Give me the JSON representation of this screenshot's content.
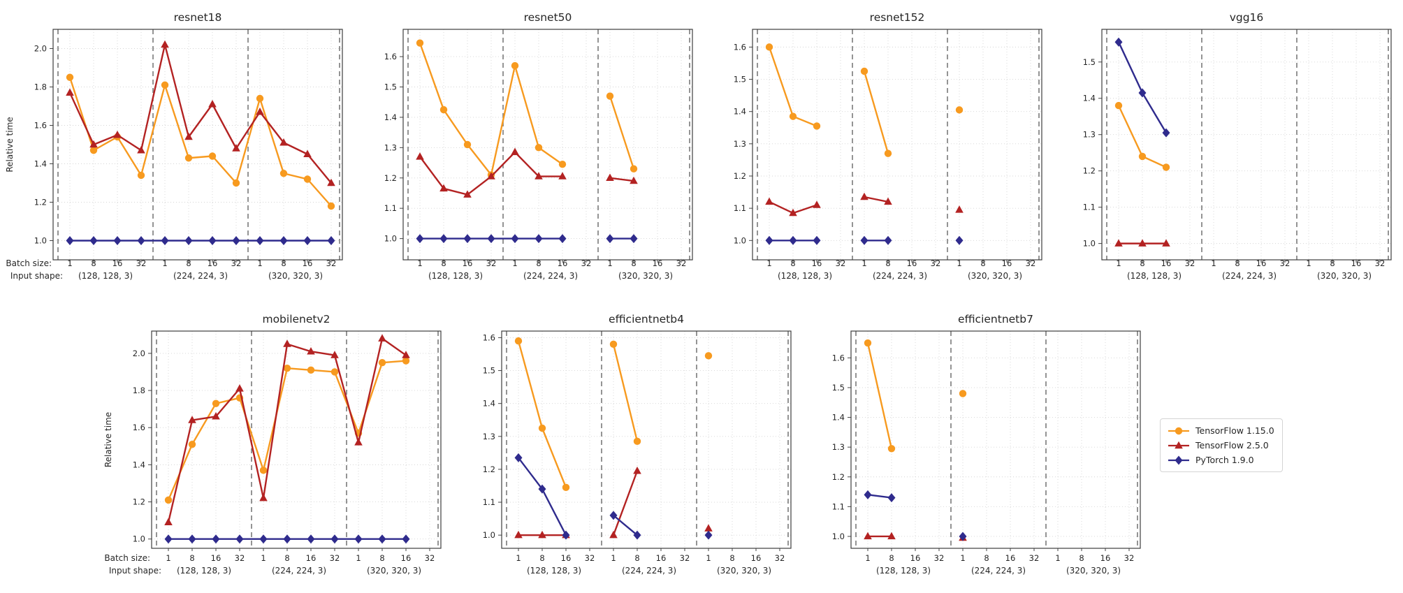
{
  "figure": {
    "ylabel": "Relative time",
    "axis_prefixes": {
      "batch": "Batch size:",
      "shape": "Input shape:"
    },
    "background": "#ffffff"
  },
  "colors": {
    "tensorflow_1_15": "#F79A1F",
    "tensorflow_2_5": "#B32222",
    "pytorch_1_9": "#2F2B8D"
  },
  "legend": {
    "items": [
      {
        "label": "TensorFlow 1.15.0",
        "marker": "circle",
        "color": "tensorflow_1_15"
      },
      {
        "label": "TensorFlow 2.5.0",
        "marker": "triangle",
        "color": "tensorflow_2_5"
      },
      {
        "label": "PyTorch 1.9.0",
        "marker": "diamond",
        "color": "pytorch_1_9"
      }
    ]
  },
  "chart_data": [
    {
      "type": "line",
      "title": "resnet18",
      "show_ylabel": true,
      "show_axis_prefixes": true,
      "ylim": [
        0.9,
        2.1
      ],
      "yticks": [
        "1.0",
        "1.2",
        "1.4",
        "1.6",
        "1.8",
        "2.0"
      ],
      "batches": [
        "1",
        "8",
        "16",
        "32",
        "1",
        "8",
        "16",
        "32",
        "1",
        "8",
        "16",
        "32"
      ],
      "input_shapes": [
        "(128, 128, 3)",
        "(224, 224, 3)",
        "(320, 320, 3)"
      ],
      "series": [
        {
          "name": "TensorFlow 1.15.0",
          "color": "tensorflow_1_15",
          "marker": "circle",
          "values": [
            1.85,
            1.47,
            1.54,
            1.34,
            1.81,
            1.43,
            1.44,
            1.3,
            1.74,
            1.35,
            1.32,
            1.18
          ]
        },
        {
          "name": "TensorFlow 2.5.0",
          "color": "tensorflow_2_5",
          "marker": "triangle",
          "values": [
            1.77,
            1.5,
            1.55,
            1.47,
            2.02,
            1.54,
            1.71,
            1.48,
            1.67,
            1.51,
            1.45,
            1.3
          ]
        },
        {
          "name": "PyTorch 1.9.0",
          "color": "pytorch_1_9",
          "marker": "diamond",
          "values": [
            1.0,
            1.0,
            1.0,
            1.0,
            1.0,
            1.0,
            1.0,
            1.0,
            1.0,
            1.0,
            1.0,
            1.0
          ]
        }
      ]
    },
    {
      "type": "line",
      "title": "resnet50",
      "show_ylabel": false,
      "show_axis_prefixes": false,
      "ylim": [
        0.93,
        1.69
      ],
      "yticks": [
        "1.0",
        "1.1",
        "1.2",
        "1.3",
        "1.4",
        "1.5",
        "1.6"
      ],
      "batches": [
        "1",
        "8",
        "16",
        "32",
        "1",
        "8",
        "16",
        "32",
        "1",
        "8",
        "16",
        "32"
      ],
      "input_shapes": [
        "(128, 128, 3)",
        "(224, 224, 3)",
        "(320, 320, 3)"
      ],
      "series": [
        {
          "name": "TensorFlow 1.15.0",
          "color": "tensorflow_1_15",
          "marker": "circle",
          "values": [
            1.645,
            1.425,
            1.31,
            1.21,
            1.57,
            1.3,
            1.245,
            null,
            1.47,
            1.23,
            null,
            null
          ]
        },
        {
          "name": "TensorFlow 2.5.0",
          "color": "tensorflow_2_5",
          "marker": "triangle",
          "values": [
            1.27,
            1.165,
            1.145,
            1.205,
            1.285,
            1.205,
            1.205,
            null,
            1.2,
            1.19,
            null,
            null
          ]
        },
        {
          "name": "PyTorch 1.9.0",
          "color": "pytorch_1_9",
          "marker": "diamond",
          "values": [
            1.0,
            1.0,
            1.0,
            1.0,
            1.0,
            1.0,
            1.0,
            null,
            1.0,
            1.0,
            null,
            null
          ]
        }
      ]
    },
    {
      "type": "line",
      "title": "resnet152",
      "show_ylabel": false,
      "show_axis_prefixes": false,
      "ylim": [
        0.94,
        1.655
      ],
      "yticks": [
        "1.0",
        "1.1",
        "1.2",
        "1.3",
        "1.4",
        "1.5",
        "1.6"
      ],
      "batches": [
        "1",
        "8",
        "16",
        "32",
        "1",
        "8",
        "16",
        "32",
        "1",
        "8",
        "16",
        "32"
      ],
      "input_shapes": [
        "(128, 128, 3)",
        "(224, 224, 3)",
        "(320, 320, 3)"
      ],
      "series": [
        {
          "name": "TensorFlow 1.15.0",
          "color": "tensorflow_1_15",
          "marker": "circle",
          "values": [
            1.6,
            1.385,
            1.355,
            null,
            1.525,
            1.27,
            null,
            null,
            1.405,
            null,
            null,
            null
          ]
        },
        {
          "name": "TensorFlow 2.5.0",
          "color": "tensorflow_2_5",
          "marker": "triangle",
          "values": [
            1.12,
            1.085,
            1.11,
            null,
            1.135,
            1.12,
            null,
            null,
            1.095,
            null,
            null,
            null
          ]
        },
        {
          "name": "PyTorch 1.9.0",
          "color": "pytorch_1_9",
          "marker": "diamond",
          "values": [
            1.0,
            1.0,
            1.0,
            null,
            1.0,
            1.0,
            null,
            null,
            1.0,
            null,
            null,
            null
          ]
        }
      ]
    },
    {
      "type": "line",
      "title": "vgg16",
      "show_ylabel": false,
      "show_axis_prefixes": false,
      "ylim": [
        0.955,
        1.59
      ],
      "yticks": [
        "1.0",
        "1.1",
        "1.2",
        "1.3",
        "1.4",
        "1.5"
      ],
      "batches": [
        "1",
        "8",
        "16",
        "32",
        "1",
        "8",
        "16",
        "32",
        "1",
        "8",
        "16",
        "32"
      ],
      "input_shapes": [
        "(128, 128, 3)",
        "(224, 224, 3)",
        "(320, 320, 3)"
      ],
      "series": [
        {
          "name": "TensorFlow 1.15.0",
          "color": "tensorflow_1_15",
          "marker": "circle",
          "values": [
            1.38,
            1.24,
            1.21,
            null,
            null,
            null,
            null,
            null,
            null,
            null,
            null,
            null
          ]
        },
        {
          "name": "TensorFlow 2.5.0",
          "color": "tensorflow_2_5",
          "marker": "triangle",
          "values": [
            1.0,
            1.0,
            1.0,
            null,
            null,
            null,
            null,
            null,
            null,
            null,
            null,
            null
          ]
        },
        {
          "name": "PyTorch 1.9.0",
          "color": "pytorch_1_9",
          "marker": "diamond",
          "values": [
            1.555,
            1.415,
            1.305,
            null,
            null,
            null,
            null,
            null,
            null,
            null,
            null,
            null
          ]
        }
      ]
    },
    {
      "type": "line",
      "title": "mobilenetv2",
      "show_ylabel": true,
      "show_axis_prefixes": true,
      "ylim": [
        0.95,
        2.12
      ],
      "yticks": [
        "1.0",
        "1.2",
        "1.4",
        "1.6",
        "1.8",
        "2.0"
      ],
      "batches": [
        "1",
        "8",
        "16",
        "32",
        "1",
        "8",
        "16",
        "32",
        "1",
        "8",
        "16",
        "32"
      ],
      "input_shapes": [
        "(128, 128, 3)",
        "(224, 224, 3)",
        "(320, 320, 3)"
      ],
      "series": [
        {
          "name": "TensorFlow 1.15.0",
          "color": "tensorflow_1_15",
          "marker": "circle",
          "values": [
            1.21,
            1.51,
            1.73,
            1.76,
            1.37,
            1.92,
            1.91,
            1.9,
            1.57,
            1.95,
            1.96,
            null
          ]
        },
        {
          "name": "TensorFlow 2.5.0",
          "color": "tensorflow_2_5",
          "marker": "triangle",
          "values": [
            1.09,
            1.64,
            1.66,
            1.81,
            1.22,
            2.05,
            2.01,
            1.99,
            1.52,
            2.08,
            1.99,
            null
          ]
        },
        {
          "name": "PyTorch 1.9.0",
          "color": "pytorch_1_9",
          "marker": "diamond",
          "values": [
            1.0,
            1.0,
            1.0,
            1.0,
            1.0,
            1.0,
            1.0,
            1.0,
            1.0,
            1.0,
            1.0,
            null
          ]
        }
      ]
    },
    {
      "type": "line",
      "title": "efficientnetb4",
      "show_ylabel": false,
      "show_axis_prefixes": false,
      "ylim": [
        0.96,
        1.62
      ],
      "yticks": [
        "1.0",
        "1.1",
        "1.2",
        "1.3",
        "1.4",
        "1.5",
        "1.6"
      ],
      "batches": [
        "1",
        "8",
        "16",
        "32",
        "1",
        "8",
        "16",
        "32",
        "1",
        "8",
        "16",
        "32"
      ],
      "input_shapes": [
        "(128, 128, 3)",
        "(224, 224, 3)",
        "(320, 320, 3)"
      ],
      "series": [
        {
          "name": "TensorFlow 1.15.0",
          "color": "tensorflow_1_15",
          "marker": "circle",
          "values": [
            1.59,
            1.325,
            1.145,
            null,
            1.58,
            1.285,
            null,
            null,
            1.545,
            null,
            null,
            null
          ]
        },
        {
          "name": "TensorFlow 2.5.0",
          "color": "tensorflow_2_5",
          "marker": "triangle",
          "values": [
            1.0,
            1.0,
            1.0,
            null,
            1.0,
            1.195,
            null,
            null,
            1.02,
            null,
            null,
            null
          ]
        },
        {
          "name": "PyTorch 1.9.0",
          "color": "pytorch_1_9",
          "marker": "diamond",
          "values": [
            1.235,
            1.14,
            1.0,
            null,
            1.06,
            1.0,
            null,
            null,
            1.0,
            null,
            null,
            null
          ]
        }
      ]
    },
    {
      "type": "line",
      "title": "efficientnetb7",
      "show_ylabel": false,
      "show_axis_prefixes": false,
      "ylim": [
        0.96,
        1.69
      ],
      "yticks": [
        "1.0",
        "1.1",
        "1.2",
        "1.3",
        "1.4",
        "1.5",
        "1.6"
      ],
      "batches": [
        "1",
        "8",
        "16",
        "32",
        "1",
        "8",
        "16",
        "32",
        "1",
        "8",
        "16",
        "32"
      ],
      "input_shapes": [
        "(128, 128, 3)",
        "(224, 224, 3)",
        "(320, 320, 3)"
      ],
      "series": [
        {
          "name": "TensorFlow 1.15.0",
          "color": "tensorflow_1_15",
          "marker": "circle",
          "values": [
            1.65,
            1.295,
            null,
            null,
            1.48,
            null,
            null,
            null,
            null,
            null,
            null,
            null
          ]
        },
        {
          "name": "TensorFlow 2.5.0",
          "color": "tensorflow_2_5",
          "marker": "triangle",
          "values": [
            1.0,
            1.0,
            null,
            null,
            0.995,
            null,
            null,
            null,
            null,
            null,
            null,
            null
          ]
        },
        {
          "name": "PyTorch 1.9.0",
          "color": "pytorch_1_9",
          "marker": "diamond",
          "values": [
            1.14,
            1.13,
            null,
            null,
            1.0,
            null,
            null,
            null,
            null,
            null,
            null,
            null
          ]
        }
      ]
    }
  ]
}
